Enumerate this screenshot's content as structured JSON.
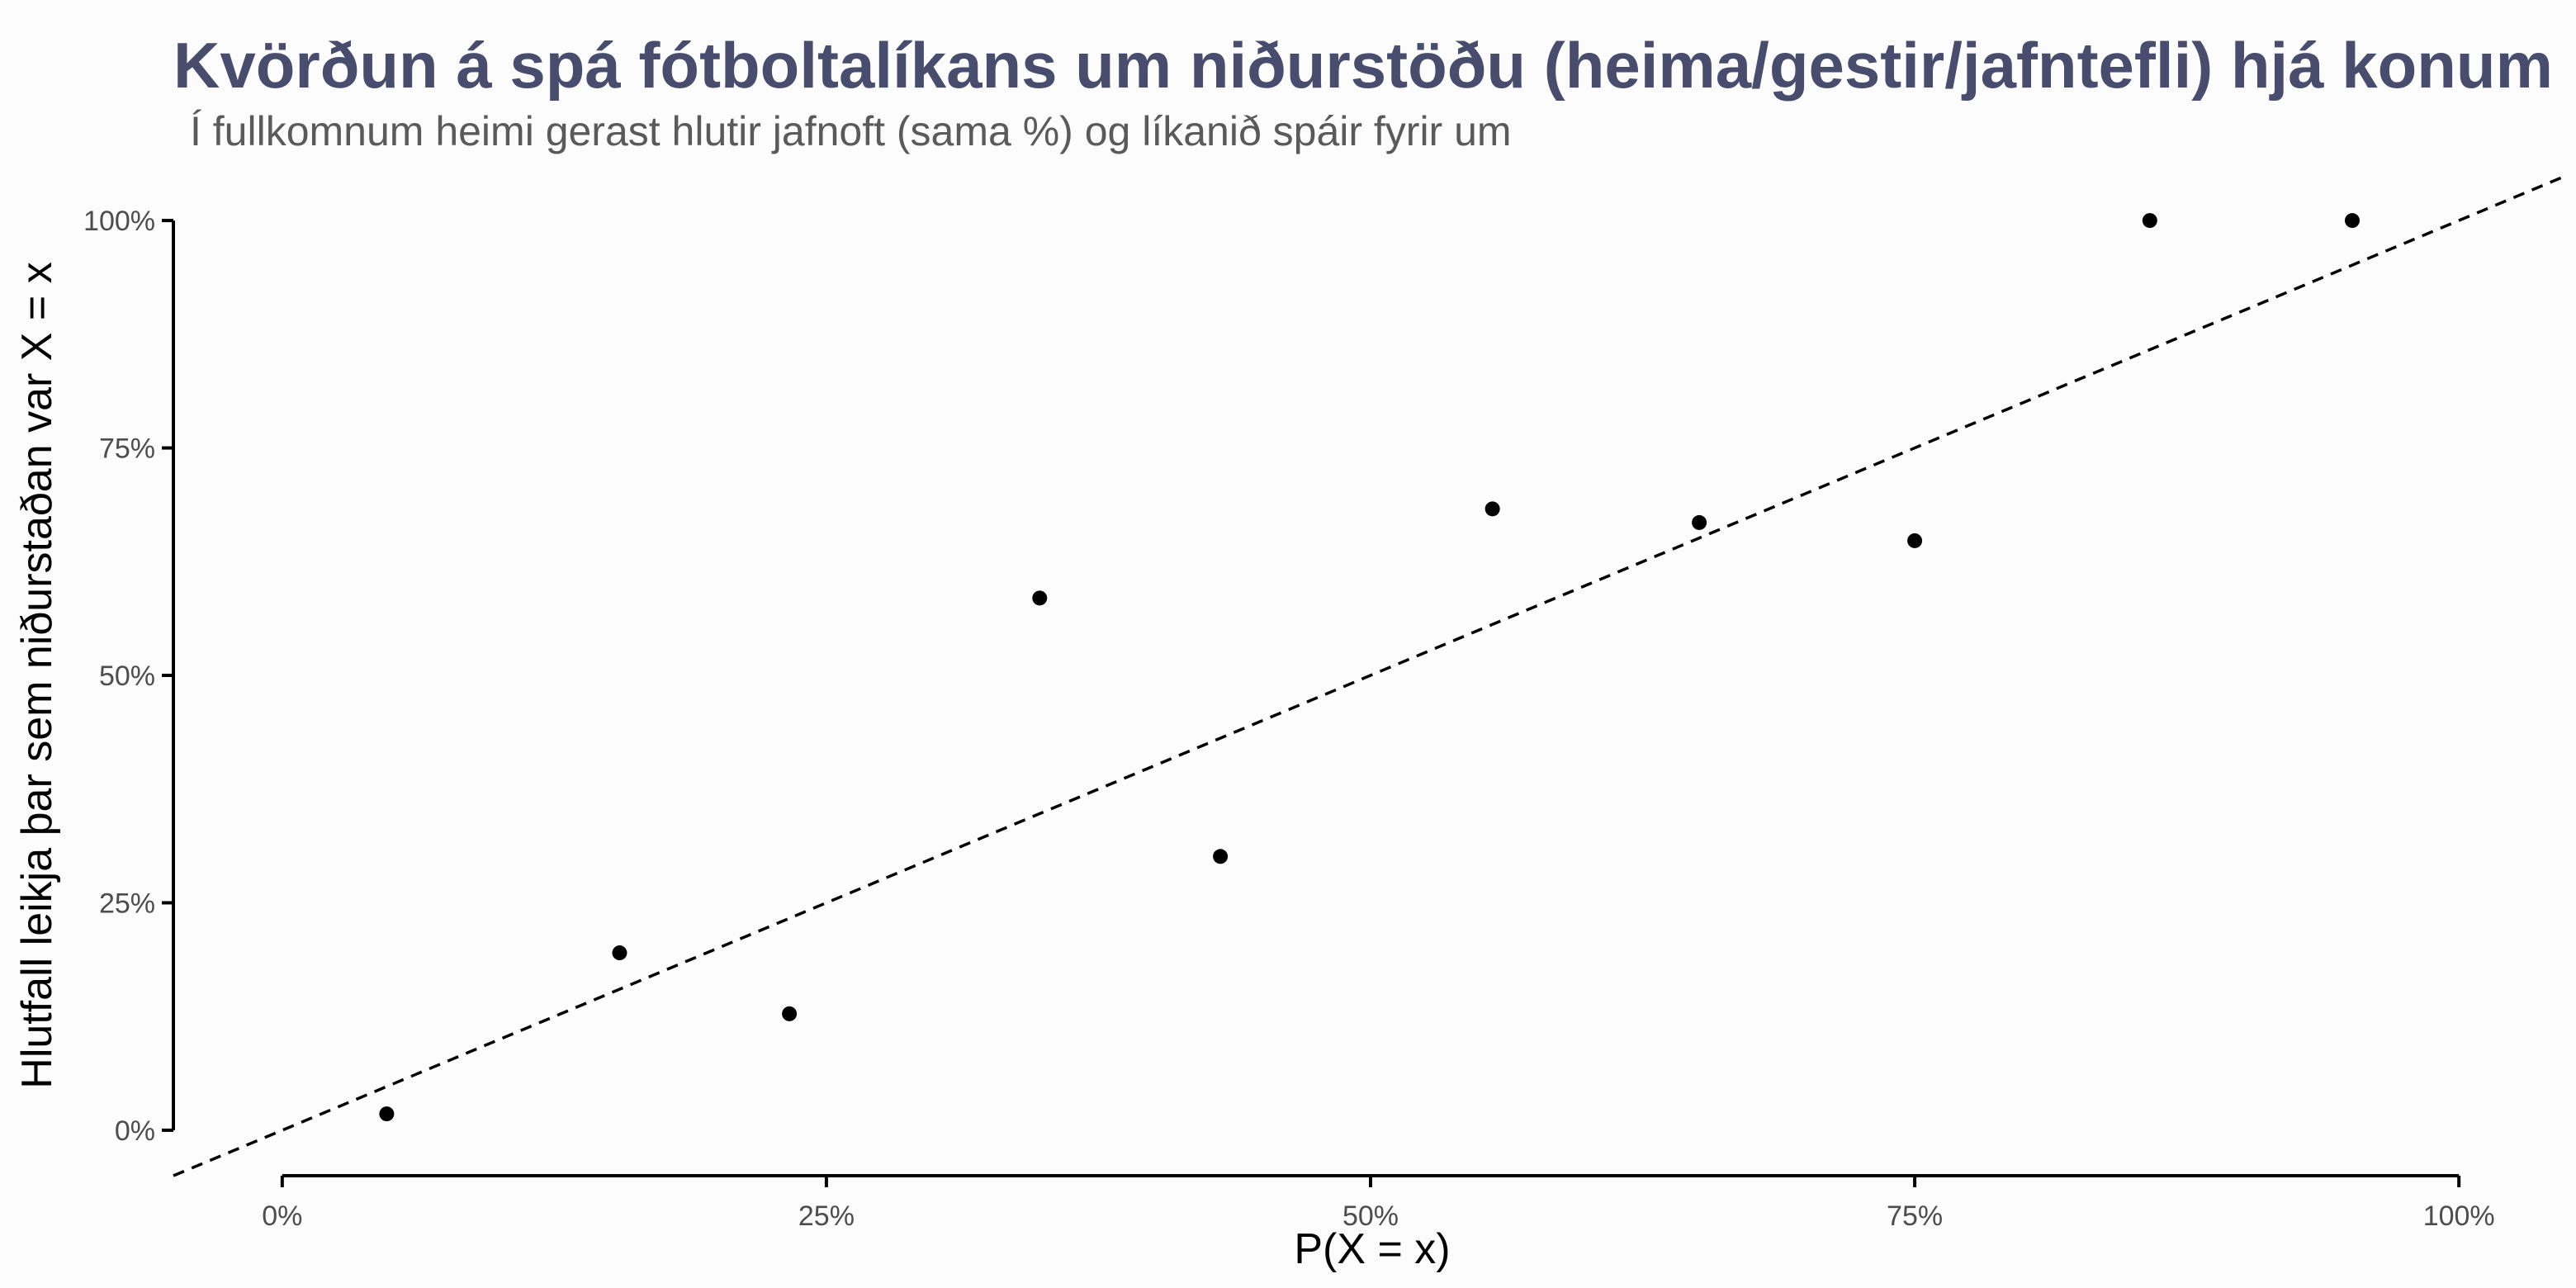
{
  "chart_data": {
    "type": "scatter",
    "title": "Kvörðun á spá fótboltalíkans um niðurstöðu (heima/gestir/jafntefli) hjá konum",
    "subtitle": "Í fullkomnum heimi gerast hlutir jafnoft (sama %) og líkanið spáir fyrir um",
    "xlabel": "P(X = x)",
    "ylabel": "Hlutfall leikja þar sem niðurstaðan var X = x",
    "xlim": [
      -0.05,
      1.05
    ],
    "ylim": [
      -0.05,
      1.05
    ],
    "x_ticks": [
      0,
      0.25,
      0.5,
      0.75,
      1
    ],
    "x_tick_labels": [
      "0%",
      "25%",
      "50%",
      "75%",
      "100%"
    ],
    "y_ticks": [
      0,
      0.25,
      0.5,
      0.75,
      1
    ],
    "y_tick_labels": [
      "0%",
      "25%",
      "50%",
      "75%",
      "100%"
    ],
    "grid": false,
    "reference_line": {
      "slope": 1,
      "intercept": 0,
      "style": "dashed"
    },
    "points": [
      {
        "x": 0.048,
        "y": 0.018
      },
      {
        "x": 0.155,
        "y": 0.195
      },
      {
        "x": 0.233,
        "y": 0.128
      },
      {
        "x": 0.348,
        "y": 0.585
      },
      {
        "x": 0.431,
        "y": 0.301
      },
      {
        "x": 0.556,
        "y": 0.683
      },
      {
        "x": 0.651,
        "y": 0.668
      },
      {
        "x": 0.75,
        "y": 0.648
      },
      {
        "x": 0.858,
        "y": 1.0
      },
      {
        "x": 0.951,
        "y": 1.0
      }
    ],
    "colors": {
      "title": "#484d6d",
      "subtitle": "#5a5a5a",
      "points": "#000000",
      "axis": "#000000",
      "tick_label": "#4d4d4d",
      "background": "#fcfcfc"
    }
  }
}
